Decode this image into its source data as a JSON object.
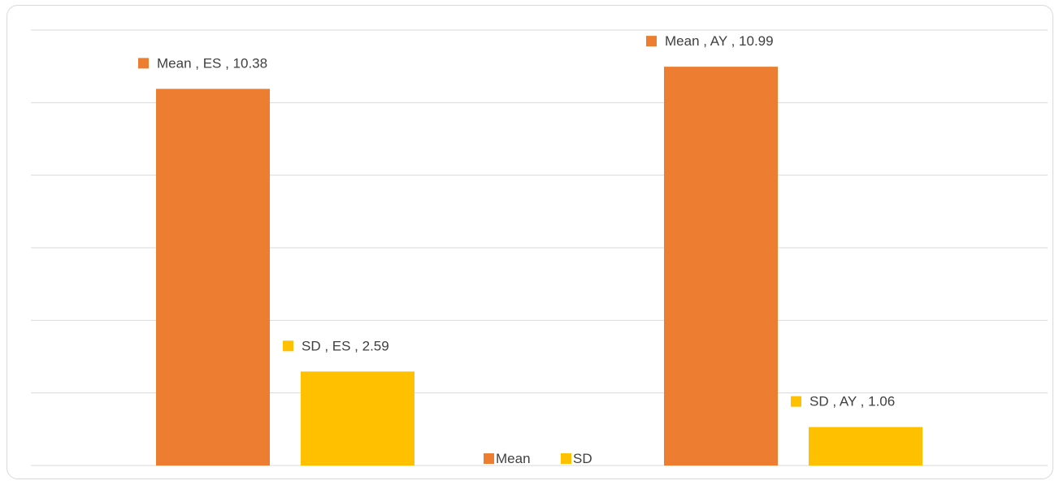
{
  "chart_data": {
    "type": "bar",
    "categories": [
      "ES",
      "AY"
    ],
    "series": [
      {
        "name": "Mean",
        "values": [
          10.38,
          10.99
        ],
        "color": "#ED7D31"
      },
      {
        "name": "SD",
        "values": [
          2.59,
          1.06
        ],
        "color": "#FFC000"
      }
    ],
    "data_labels": [
      [
        "Mean , ES , 10.38",
        "Mean , AY , 10.99"
      ],
      [
        "SD , ES , 2.59",
        "SD , AY , 1.06"
      ]
    ],
    "legend": {
      "placement": "bottom",
      "entries": [
        "Mean",
        "SD"
      ]
    },
    "ylim": [
      0,
      12
    ],
    "grid": true,
    "gridline_color": "#d9d9d9",
    "title": "",
    "xlabel": "",
    "ylabel": ""
  }
}
